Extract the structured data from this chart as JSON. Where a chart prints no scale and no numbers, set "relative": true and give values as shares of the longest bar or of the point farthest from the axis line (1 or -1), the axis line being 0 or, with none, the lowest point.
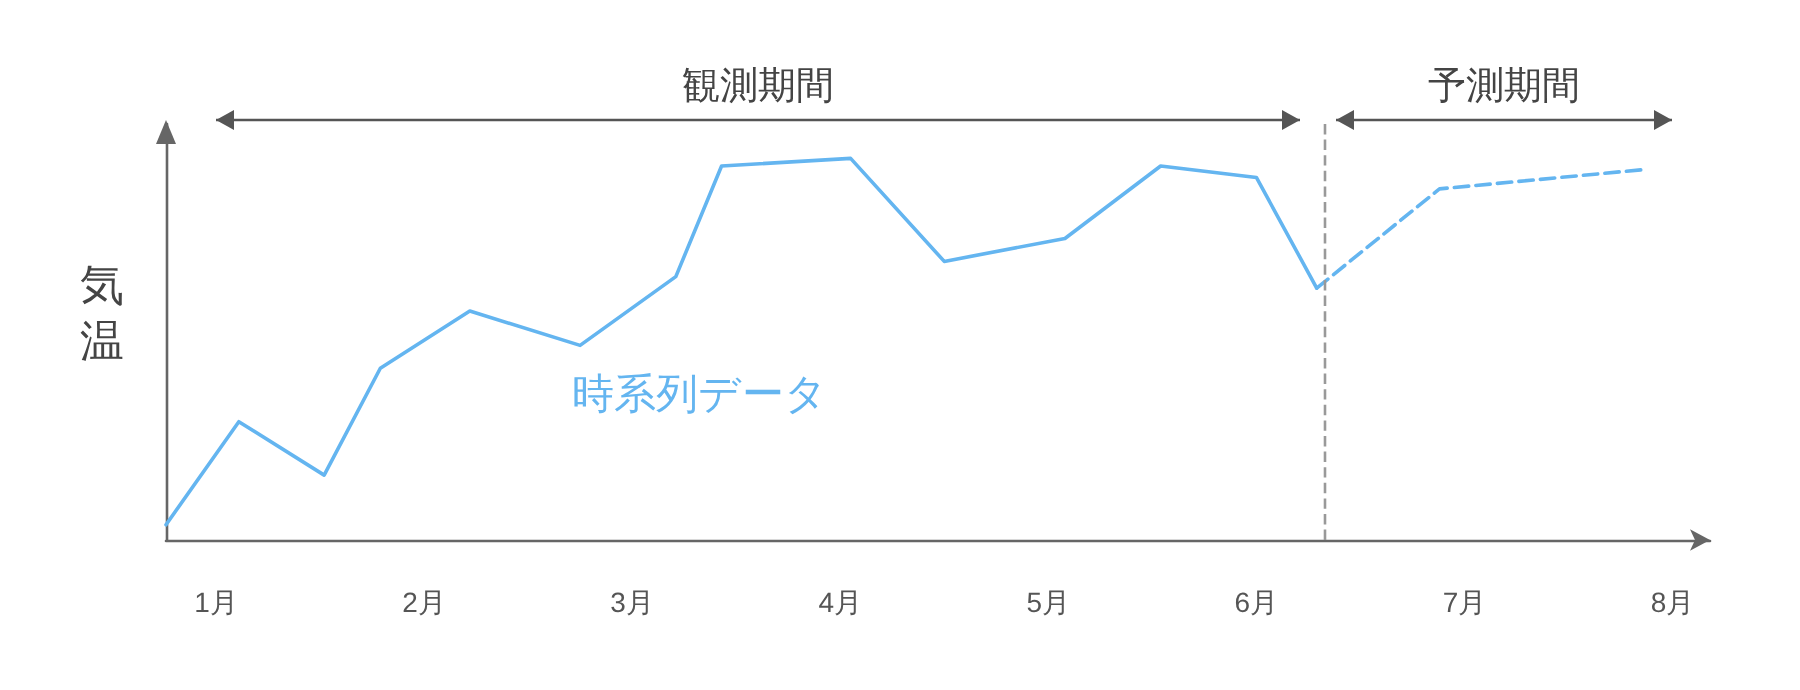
{
  "chart_data": {
    "type": "line",
    "relative": true,
    "ylabel": "気温",
    "tick_labels": "x",
    "marker": "none",
    "xlim": [
      0.76,
      8.18
    ],
    "xticks": [
      {
        "value": 1,
        "label": "1月"
      },
      {
        "value": 2,
        "label": "2月"
      },
      {
        "value": 3,
        "label": "3月"
      },
      {
        "value": 4,
        "label": "4月"
      },
      {
        "value": 5,
        "label": "5月"
      },
      {
        "value": 6,
        "label": "6月"
      },
      {
        "value": 7,
        "label": "7月"
      },
      {
        "value": 8,
        "label": "8月"
      }
    ],
    "series": [
      {
        "color": "#64b5f0",
        "line_style": "solid",
        "x": [
          0.76,
          1.11,
          1.52,
          1.79,
          2.22,
          2.75,
          3.21,
          3.43,
          4.05,
          4.5,
          5.08,
          5.54,
          6.0,
          6.29
        ],
        "values": [
          0.04,
          0.31,
          0.17,
          0.45,
          0.6,
          0.51,
          0.69,
          0.98,
          1,
          0.73,
          0.79,
          0.98,
          0.95,
          0.66
        ]
      },
      {
        "color": "#64b5f0",
        "line_style": "dashed",
        "x": [
          6.29,
          6.88,
          7.85
        ],
        "values": [
          0.66,
          0.92,
          0.97
        ]
      }
    ],
    "ref_lines": [
      {
        "axis": "x",
        "value": 6.33,
        "color": "#999999",
        "line_style": "dashed"
      }
    ],
    "annotations": [
      "観測期間",
      "予測期間",
      "時系列データ"
    ]
  }
}
